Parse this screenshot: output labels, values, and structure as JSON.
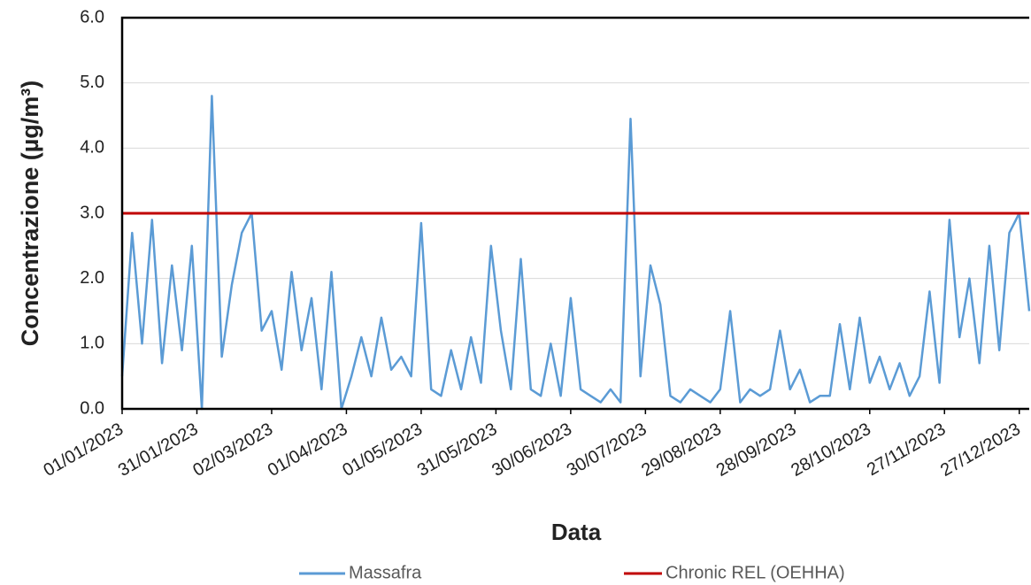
{
  "chart_data": {
    "type": "line",
    "x_label": "Data",
    "y_label": "Concentrazione (µg/m³)",
    "x": [
      "2023-01-01",
      "2023-01-05",
      "2023-01-09",
      "2023-01-13",
      "2023-01-17",
      "2023-01-21",
      "2023-01-25",
      "2023-01-29",
      "2023-02-02",
      "2023-02-06",
      "2023-02-10",
      "2023-02-14",
      "2023-02-18",
      "2023-02-22",
      "2023-02-26",
      "2023-03-02",
      "2023-03-06",
      "2023-03-10",
      "2023-03-14",
      "2023-03-18",
      "2023-03-22",
      "2023-03-26",
      "2023-03-30",
      "2023-04-03",
      "2023-04-07",
      "2023-04-11",
      "2023-04-15",
      "2023-04-19",
      "2023-04-23",
      "2023-04-27",
      "2023-05-01",
      "2023-05-05",
      "2023-05-09",
      "2023-05-13",
      "2023-05-17",
      "2023-05-21",
      "2023-05-25",
      "2023-05-29",
      "2023-06-02",
      "2023-06-06",
      "2023-06-10",
      "2023-06-14",
      "2023-06-18",
      "2023-06-22",
      "2023-06-26",
      "2023-06-30",
      "2023-07-04",
      "2023-07-08",
      "2023-07-12",
      "2023-07-16",
      "2023-07-20",
      "2023-07-24",
      "2023-07-28",
      "2023-08-01",
      "2023-08-05",
      "2023-08-09",
      "2023-08-13",
      "2023-08-17",
      "2023-08-21",
      "2023-08-25",
      "2023-08-29",
      "2023-09-02",
      "2023-09-06",
      "2023-09-10",
      "2023-09-14",
      "2023-09-18",
      "2023-09-22",
      "2023-09-26",
      "2023-09-30",
      "2023-10-04",
      "2023-10-08",
      "2023-10-12",
      "2023-10-16",
      "2023-10-20",
      "2023-10-24",
      "2023-10-28",
      "2023-11-01",
      "2023-11-05",
      "2023-11-09",
      "2023-11-13",
      "2023-11-17",
      "2023-11-21",
      "2023-11-25",
      "2023-11-29",
      "2023-12-03",
      "2023-12-07",
      "2023-12-11",
      "2023-12-15",
      "2023-12-19",
      "2023-12-23",
      "2023-12-27",
      "2023-12-31"
    ],
    "series": [
      {
        "name": "Massafra",
        "color": "#5b9bd5",
        "values": [
          0.5,
          2.7,
          1.0,
          2.9,
          0.7,
          2.2,
          0.9,
          2.5,
          0.0,
          4.8,
          0.8,
          1.9,
          2.7,
          3.0,
          1.2,
          1.5,
          0.6,
          2.1,
          0.9,
          1.7,
          0.3,
          2.1,
          0.0,
          0.5,
          1.1,
          0.5,
          1.4,
          0.6,
          0.8,
          0.5,
          2.85,
          0.3,
          0.2,
          0.9,
          0.3,
          1.1,
          0.4,
          2.5,
          1.2,
          0.3,
          2.3,
          0.3,
          0.2,
          1.0,
          0.2,
          1.7,
          0.3,
          0.2,
          0.1,
          0.3,
          0.1,
          4.45,
          0.5,
          2.2,
          1.6,
          0.2,
          0.1,
          0.3,
          0.2,
          0.1,
          0.3,
          1.5,
          0.1,
          0.3,
          0.2,
          0.3,
          1.2,
          0.3,
          0.6,
          0.1,
          0.2,
          0.2,
          1.3,
          0.3,
          1.4,
          0.4,
          0.8,
          0.3,
          0.7,
          0.2,
          0.5,
          1.8,
          0.4,
          2.9,
          1.1,
          2.0,
          0.7,
          2.5,
          0.9,
          2.7,
          3.0,
          1.5
        ]
      }
    ],
    "reference_line": {
      "name": "Chronic REL (OEHHA)",
      "color": "#c00000",
      "value": 3
    },
    "xlim": [
      "2023-01-01",
      "2023-12-31"
    ],
    "xticks": [
      {
        "value": "2023-01-01",
        "label": "01/01/2023"
      },
      {
        "value": "2023-01-31",
        "label": "31/01/2023"
      },
      {
        "value": "2023-03-02",
        "label": "02/03/2023"
      },
      {
        "value": "2023-04-01",
        "label": "01/04/2023"
      },
      {
        "value": "2023-05-01",
        "label": "01/05/2023"
      },
      {
        "value": "2023-05-31",
        "label": "31/05/2023"
      },
      {
        "value": "2023-06-30",
        "label": "30/06/2023"
      },
      {
        "value": "2023-07-30",
        "label": "30/07/2023"
      },
      {
        "value": "2023-08-29",
        "label": "29/08/2023"
      },
      {
        "value": "2023-09-28",
        "label": "28/09/2023"
      },
      {
        "value": "2023-10-28",
        "label": "28/10/2023"
      },
      {
        "value": "2023-11-27",
        "label": "27/11/2023"
      },
      {
        "value": "2023-12-27",
        "label": "27/12/2023"
      }
    ],
    "ylim": [
      0,
      6
    ],
    "yticks": [
      {
        "value": 0,
        "label": "0.0"
      },
      {
        "value": 1,
        "label": "1.0"
      },
      {
        "value": 2,
        "label": "2.0"
      },
      {
        "value": 3,
        "label": "3.0"
      },
      {
        "value": 4,
        "label": "4.0"
      },
      {
        "value": 5,
        "label": "5.0"
      },
      {
        "value": 6,
        "label": "6.0"
      }
    ],
    "grid": true,
    "legend": "bottom"
  }
}
